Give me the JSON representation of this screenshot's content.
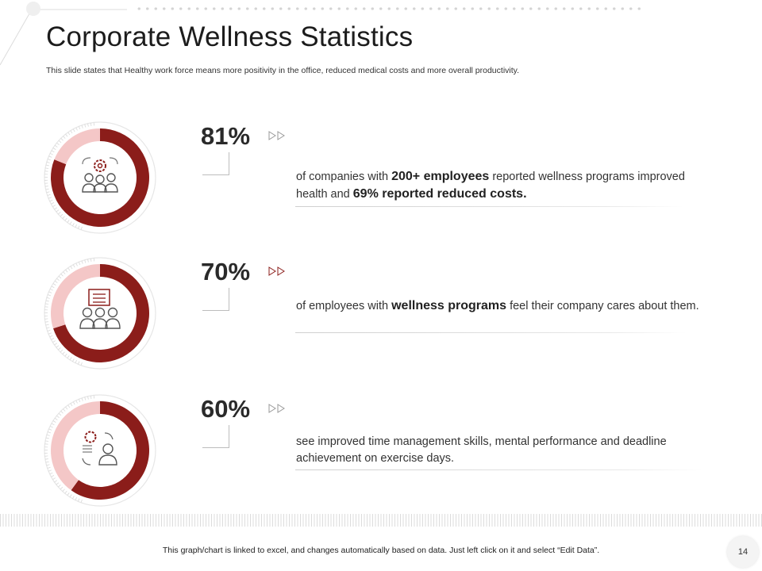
{
  "title": "Corporate Wellness Statistics",
  "subtitle": "This slide states that Healthy work force means more positivity in the office, reduced medical costs and more overall productivity.",
  "colors": {
    "accent": "#8b1d1a",
    "accent_light": "#f4c7c7",
    "ring_outer": "#e6e6e6"
  },
  "chart_data": [
    {
      "type": "pie",
      "values": [
        81,
        19
      ],
      "label": "81%",
      "icon": "team-gear-icon",
      "text": [
        {
          "t": "of companies with ",
          "b": false
        },
        {
          "t": "200+ employees",
          "b": true
        },
        {
          "t": " reported wellness programs improved health and ",
          "b": false
        },
        {
          "t": "69% reported reduced costs.",
          "b": true
        }
      ]
    },
    {
      "type": "pie",
      "values": [
        70,
        30
      ],
      "label": "70%",
      "icon": "team-presentation-icon",
      "text": [
        {
          "t": "of employees with ",
          "b": false
        },
        {
          "t": "wellness programs",
          "b": true
        },
        {
          "t": " feel their company cares about them.",
          "b": false
        }
      ]
    },
    {
      "type": "pie",
      "values": [
        60,
        40
      ],
      "label": "60%",
      "icon": "time-management-icon",
      "text": [
        {
          "t": "see improved time management skills, mental performance and deadline achievement on exercise days.",
          "b": false
        }
      ]
    }
  ],
  "footer": "This graph/chart is linked to excel, and changes automatically based on data. Just left click on it and select “Edit Data”.",
  "page_number": "14"
}
